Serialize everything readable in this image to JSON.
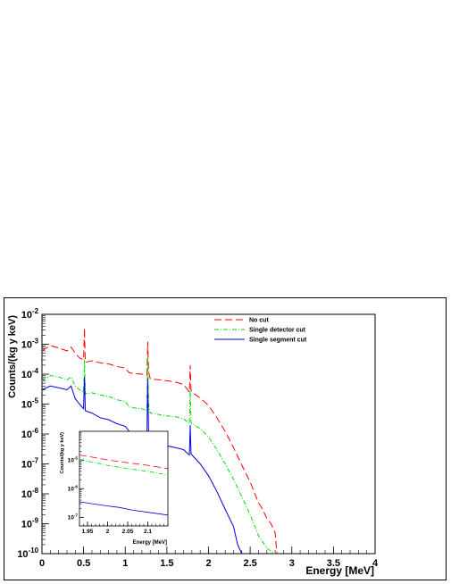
{
  "chart_data": [
    {
      "type": "line",
      "title": "",
      "xlabel": "Energy [MeV]",
      "ylabel": "Counts/(kg y keV)",
      "xlim": [
        0,
        4
      ],
      "ylim": [
        1e-10,
        0.01
      ],
      "yscale": "log",
      "x_ticks": [
        "0",
        "0.5",
        "1",
        "1.5",
        "2",
        "2.5",
        "3",
        "3.5",
        "4"
      ],
      "y_ticks": [
        {
          "base": "10",
          "exp": "-10"
        },
        {
          "base": "10",
          "exp": "-9"
        },
        {
          "base": "10",
          "exp": "-8"
        },
        {
          "base": "10",
          "exp": "-7"
        },
        {
          "base": "10",
          "exp": "-6"
        },
        {
          "base": "10",
          "exp": "-5"
        },
        {
          "base": "10",
          "exp": "-4"
        },
        {
          "base": "10",
          "exp": "-3"
        },
        {
          "base": "10",
          "exp": "-2"
        }
      ],
      "legend_position": "top-right",
      "series": [
        {
          "name": "No cut",
          "color": "#ff0000",
          "dash": "dashed",
          "points": [
            [
              0,
              0.0006
            ],
            [
              0.1,
              0.0009
            ],
            [
              0.2,
              0.00075
            ],
            [
              0.3,
              0.0006
            ],
            [
              0.35,
              0.0008
            ],
            [
              0.4,
              0.0005
            ],
            [
              0.45,
              0.00035
            ],
            [
              0.5,
              0.0003
            ],
            [
              0.505,
              0.001
            ],
            [
              0.51,
              0.0035
            ],
            [
              0.515,
              0.001
            ],
            [
              0.52,
              0.00025
            ],
            [
              0.6,
              0.00028
            ],
            [
              0.7,
              0.00024
            ],
            [
              0.8,
              0.00022
            ],
            [
              0.9,
              0.00018
            ],
            [
              1.0,
              0.00016
            ],
            [
              1.05,
              0.00011
            ],
            [
              1.1,
              0.000105
            ],
            [
              1.2,
              0.0001
            ],
            [
              1.26,
              9e-05
            ],
            [
              1.27,
              0.0012
            ],
            [
              1.28,
              0.00012
            ],
            [
              1.3,
              7e-05
            ],
            [
              1.4,
              6.5e-05
            ],
            [
              1.5,
              6e-05
            ],
            [
              1.6,
              5.5e-05
            ],
            [
              1.7,
              4.5e-05
            ],
            [
              1.75,
              3e-05
            ],
            [
              1.77,
              2.5e-05
            ],
            [
              1.78,
              0.0002
            ],
            [
              1.79,
              3e-05
            ],
            [
              1.8,
              2.5e-05
            ],
            [
              1.9,
              1.6e-05
            ],
            [
              2.0,
              9e-06
            ],
            [
              2.1,
              3.5e-06
            ],
            [
              2.2,
              1.2e-06
            ],
            [
              2.3,
              3.5e-07
            ],
            [
              2.4,
              9e-08
            ],
            [
              2.5,
              2.5e-08
            ],
            [
              2.6,
              5e-09
            ],
            [
              2.65,
              3e-09
            ],
            [
              2.7,
              1.5e-09
            ],
            [
              2.75,
              1e-09
            ],
            [
              2.8,
              5e-10
            ],
            [
              2.82,
              1e-10
            ]
          ]
        },
        {
          "name": "Single detector cut",
          "color": "#00dd00",
          "dash": "dashdot",
          "points": [
            [
              0,
              6e-05
            ],
            [
              0.1,
              9e-05
            ],
            [
              0.2,
              8e-05
            ],
            [
              0.3,
              6.5e-05
            ],
            [
              0.35,
              8e-05
            ],
            [
              0.4,
              4e-05
            ],
            [
              0.45,
              3e-05
            ],
            [
              0.5,
              2.5e-05
            ],
            [
              0.505,
              0.0001
            ],
            [
              0.51,
              0.0003
            ],
            [
              0.515,
              0.0001
            ],
            [
              0.52,
              2.2e-05
            ],
            [
              0.6,
              2.4e-05
            ],
            [
              0.7,
              2e-05
            ],
            [
              0.8,
              1.8e-05
            ],
            [
              0.9,
              1.4e-05
            ],
            [
              1.0,
              1.2e-05
            ],
            [
              1.05,
              8e-06
            ],
            [
              1.1,
              7.5e-06
            ],
            [
              1.2,
              7e-06
            ],
            [
              1.26,
              6e-06
            ],
            [
              1.27,
              0.0004
            ],
            [
              1.28,
              1e-05
            ],
            [
              1.3,
              5e-06
            ],
            [
              1.4,
              4.5e-06
            ],
            [
              1.5,
              4e-06
            ],
            [
              1.6,
              3.8e-06
            ],
            [
              1.7,
              3.2e-06
            ],
            [
              1.75,
              2.5e-06
            ],
            [
              1.77,
              2.2e-06
            ],
            [
              1.78,
              3e-05
            ],
            [
              1.79,
              2.5e-06
            ],
            [
              1.8,
              2.2e-06
            ],
            [
              1.9,
              1.5e-06
            ],
            [
              2.0,
              8e-07
            ],
            [
              2.1,
              3e-07
            ],
            [
              2.2,
              1e-07
            ],
            [
              2.3,
              3e-08
            ],
            [
              2.4,
              8e-09
            ],
            [
              2.5,
              2e-09
            ],
            [
              2.6,
              4e-10
            ],
            [
              2.65,
              2.5e-10
            ],
            [
              2.7,
              1.5e-10
            ],
            [
              2.8,
              1e-10
            ]
          ]
        },
        {
          "name": "Single segment cut",
          "color": "#0000dd",
          "dash": "solid",
          "points": [
            [
              0,
              3e-05
            ],
            [
              0.1,
              4e-05
            ],
            [
              0.2,
              3.5e-05
            ],
            [
              0.3,
              3e-05
            ],
            [
              0.35,
              4e-05
            ],
            [
              0.4,
              1.5e-05
            ],
            [
              0.45,
              1e-05
            ],
            [
              0.5,
              7e-06
            ],
            [
              0.505,
              3e-05
            ],
            [
              0.51,
              8e-05
            ],
            [
              0.515,
              3e-05
            ],
            [
              0.52,
              6e-06
            ],
            [
              0.6,
              5e-06
            ],
            [
              0.7,
              3.5e-06
            ],
            [
              0.8,
              3e-06
            ],
            [
              0.9,
              2.2e-06
            ],
            [
              1.0,
              1.8e-06
            ],
            [
              1.05,
              1.2e-06
            ],
            [
              1.1,
              1e-06
            ],
            [
              1.2,
              8e-07
            ],
            [
              1.26,
              7e-07
            ],
            [
              1.27,
              7e-05
            ],
            [
              1.28,
              1e-06
            ],
            [
              1.3,
              6e-07
            ],
            [
              1.4,
              5e-07
            ],
            [
              1.5,
              4e-07
            ],
            [
              1.6,
              3.5e-07
            ],
            [
              1.7,
              3e-07
            ],
            [
              1.75,
              2.2e-07
            ],
            [
              1.77,
              2e-07
            ],
            [
              1.78,
              2e-06
            ],
            [
              1.79,
              2.2e-07
            ],
            [
              1.8,
              2e-07
            ],
            [
              1.9,
              1e-07
            ],
            [
              2.0,
              4e-08
            ],
            [
              2.1,
              1.2e-08
            ],
            [
              2.2,
              3e-09
            ],
            [
              2.3,
              8e-10
            ],
            [
              2.35,
              2e-10
            ],
            [
              2.4,
              1e-10
            ]
          ]
        }
      ]
    },
    {
      "type": "line",
      "title": "",
      "xlabel": "Energy [MeV]",
      "ylabel": "Counts/(kg y keV)",
      "xlim": [
        1.93,
        2.15
      ],
      "ylim": [
        5e-08,
        0.0001
      ],
      "yscale": "log",
      "x_ticks": [
        "1.95",
        "2",
        "2.05",
        "2.1"
      ],
      "y_ticks": [
        {
          "base": "10",
          "exp": "-7"
        },
        {
          "base": "10",
          "exp": "-6"
        },
        {
          "base": "10",
          "exp": "-5"
        }
      ],
      "series": [
        {
          "name": "No cut",
          "color": "#ff0000",
          "dash": "dashed",
          "points": [
            [
              1.93,
              1.5e-05
            ],
            [
              1.97,
              1.2e-05
            ],
            [
              2.0,
              1e-05
            ],
            [
              2.05,
              8e-06
            ],
            [
              2.1,
              6.5e-06
            ],
            [
              2.15,
              5e-06
            ]
          ]
        },
        {
          "name": "Single detector cut",
          "color": "#00dd00",
          "dash": "dashdot",
          "points": [
            [
              1.93,
              1e-05
            ],
            [
              1.97,
              8e-06
            ],
            [
              2.0,
              6.5e-06
            ],
            [
              2.05,
              5e-06
            ],
            [
              2.1,
              4e-06
            ],
            [
              2.15,
              3e-06
            ]
          ]
        },
        {
          "name": "Single segment cut",
          "color": "#0000dd",
          "dash": "solid",
          "points": [
            [
              1.93,
              3.5e-07
            ],
            [
              1.96,
              3e-07
            ],
            [
              2.0,
              2.5e-07
            ],
            [
              2.03,
              2.2e-07
            ],
            [
              2.06,
              1.8e-07
            ],
            [
              2.1,
              1.5e-07
            ],
            [
              2.15,
              1.2e-07
            ]
          ]
        }
      ]
    }
  ]
}
